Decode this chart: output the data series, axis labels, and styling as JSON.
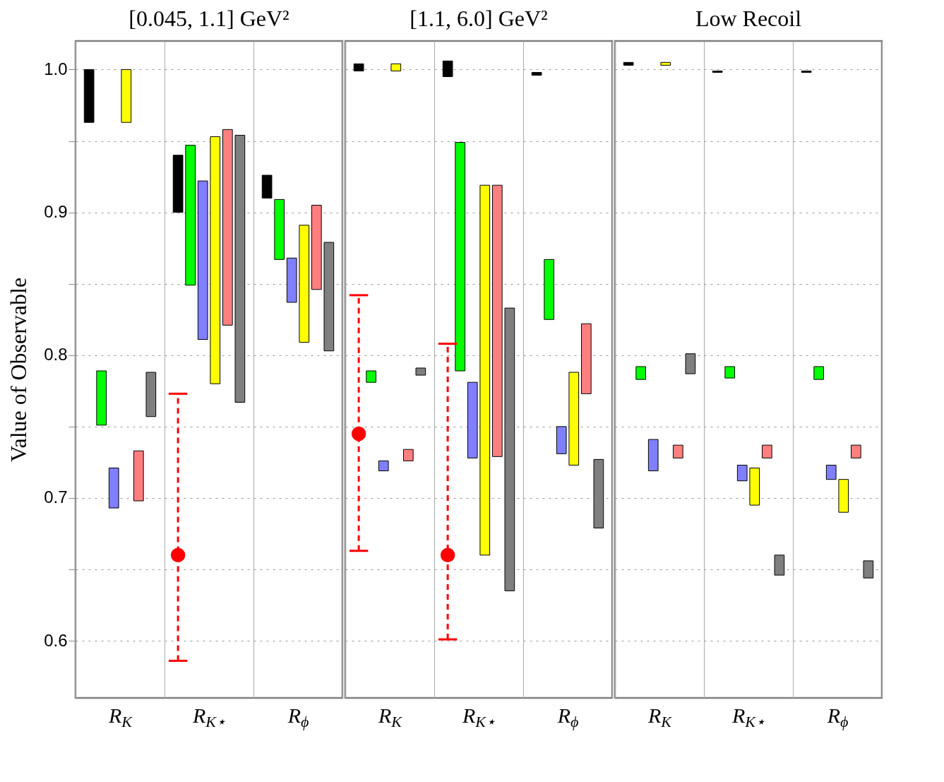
{
  "chart_data": [
    {
      "type": "bar",
      "title": "[0.045, 1.1] GeV²",
      "ylabel": "Value of Observable",
      "categories": [
        "R$_{K}$",
        "R$_{K⋆}$",
        "R$_{ϕ}$"
      ],
      "ylim": [
        0.56,
        1.02
      ],
      "yticks": [
        0.6,
        {
          "value": 0.65,
          "label": null
        },
        0.7,
        {
          "value": 0.75,
          "label": null
        },
        0.8,
        {
          "value": 0.85,
          "label": null
        },
        0.9,
        {
          "value": 0.95,
          "label": null
        },
        {
          "value": 1.0,
          "label": "1.0"
        }
      ],
      "grid": "y",
      "series": [
        {
          "color": "#000000",
          "base": [
            0.963,
            0.9,
            0.91
          ],
          "values": [
            0.037,
            0.04,
            0.016
          ]
        },
        {
          "color": "#00ff00",
          "base": [
            0.751,
            0.849,
            0.867
          ],
          "values": [
            0.038,
            0.098,
            0.042
          ]
        },
        {
          "color": "#7f7fff",
          "base": [
            0.693,
            0.811,
            0.837
          ],
          "values": [
            0.028,
            0.111,
            0.031
          ]
        },
        {
          "color": "#ffff00",
          "base": [
            0.963,
            0.78,
            0.809
          ],
          "values": [
            0.037,
            0.173,
            0.082
          ]
        },
        {
          "color": "#ff7f7f",
          "base": [
            0.698,
            0.821,
            0.846
          ],
          "values": [
            0.035,
            0.137,
            0.059
          ]
        },
        {
          "color": "#7f7f7f",
          "base": [
            0.757,
            0.767,
            0.803
          ],
          "values": [
            0.031,
            0.187,
            0.076
          ]
        },
        {
          "type": "scatter",
          "color": "#ff0000",
          "marker": "circle",
          "line_style": "dashed",
          "values": [
            null,
            0.66,
            null
          ],
          "errors": [
            null,
            [
              0.586,
              0.773
            ],
            null
          ]
        }
      ]
    },
    {
      "type": "bar",
      "title": "[1.1, 6.0] GeV²",
      "categories": [
        "R$_{K}$",
        "R$_{K⋆}$",
        "R$_{ϕ}$"
      ],
      "ylim": [
        0.56,
        1.02
      ],
      "yticks": [
        0.6,
        0.65,
        0.7,
        0.75,
        0.8,
        0.85,
        0.9,
        0.95,
        1
      ],
      "grid": "y",
      "tick_labels": "x",
      "series": [
        {
          "color": "#000000",
          "base": [
            0.999,
            0.995,
            0.996
          ],
          "values": [
            0.005,
            0.011,
            0.002
          ]
        },
        {
          "color": "#00ff00",
          "base": [
            0.781,
            0.789,
            0.825
          ],
          "values": [
            0.008,
            0.16,
            0.042
          ]
        },
        {
          "color": "#7f7fff",
          "base": [
            0.719,
            0.728,
            0.731
          ],
          "values": [
            0.007,
            0.053,
            0.019
          ]
        },
        {
          "color": "#ffff00",
          "base": [
            0.999,
            0.66,
            0.723
          ],
          "values": [
            0.005,
            0.259,
            0.065
          ]
        },
        {
          "color": "#ff7f7f",
          "base": [
            0.726,
            0.729,
            0.773
          ],
          "values": [
            0.008,
            0.19,
            0.049
          ]
        },
        {
          "color": "#7f7f7f",
          "base": [
            0.786,
            0.635,
            0.679
          ],
          "values": [
            0.005,
            0.198,
            0.048
          ]
        },
        {
          "type": "scatter",
          "color": "#ff0000",
          "marker": "circle",
          "line_style": "dashed",
          "values": [
            0.745,
            0.66,
            null
          ],
          "errors": [
            [
              0.663,
              0.842
            ],
            [
              0.601,
              0.808
            ],
            null
          ]
        }
      ]
    },
    {
      "type": "bar",
      "title": "Low Recoil",
      "categories": [
        "R$_{K}$",
        "R$_{K⋆}$",
        "R$_{ϕ}$"
      ],
      "ylim": [
        0.56,
        1.02
      ],
      "yticks": [
        0.6,
        0.65,
        0.7,
        0.75,
        0.8,
        0.85,
        0.9,
        0.95,
        1
      ],
      "grid": "y",
      "tick_labels": "x",
      "series": [
        {
          "color": "#000000",
          "base": [
            1.003,
            0.998,
            0.998
          ],
          "values": [
            0.002,
            0.001,
            0.001
          ]
        },
        {
          "color": "#00ff00",
          "base": [
            0.783,
            0.784,
            0.783
          ],
          "values": [
            0.009,
            0.008,
            0.009
          ]
        },
        {
          "color": "#7f7fff",
          "base": [
            0.719,
            0.712,
            0.713
          ],
          "values": [
            0.022,
            0.011,
            0.01
          ]
        },
        {
          "color": "#ffff00",
          "base": [
            1.003,
            0.695,
            0.69
          ],
          "values": [
            0.002,
            0.026,
            0.023
          ]
        },
        {
          "color": "#ff7f7f",
          "base": [
            0.728,
            0.728,
            0.728
          ],
          "values": [
            0.009,
            0.009,
            0.009
          ]
        },
        {
          "color": "#7f7f7f",
          "base": [
            0.787,
            0.646,
            0.644
          ],
          "values": [
            0.014,
            0.014,
            0.012
          ]
        }
      ]
    }
  ]
}
